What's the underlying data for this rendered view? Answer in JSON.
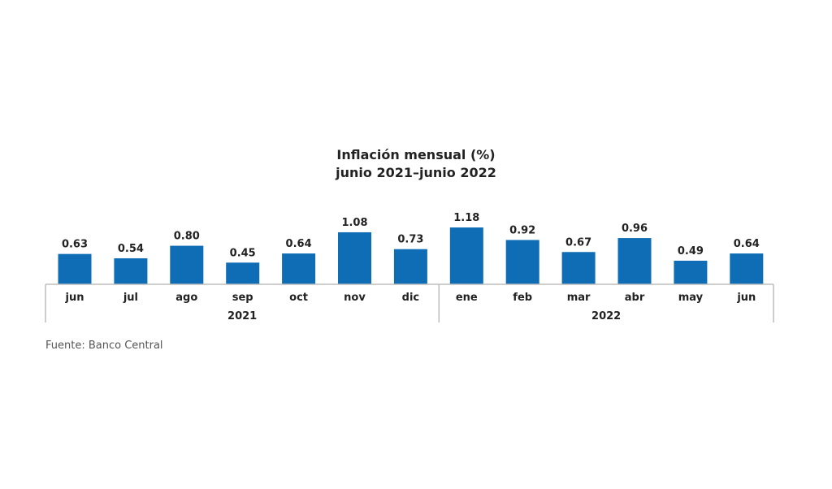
{
  "chart_data": {
    "type": "bar",
    "title": "Inflación mensual (%)",
    "subtitle": "junio 2021–junio 2022",
    "categories": [
      "jun",
      "jul",
      "ago",
      "sep",
      "oct",
      "nov",
      "dic",
      "ene",
      "feb",
      "mar",
      "abr",
      "may",
      "jun"
    ],
    "groups": [
      {
        "label": "2021",
        "count": 7
      },
      {
        "label": "2022",
        "count": 6
      }
    ],
    "values": [
      0.63,
      0.54,
      0.8,
      0.45,
      0.64,
      1.08,
      0.73,
      1.18,
      0.92,
      0.67,
      0.96,
      0.49,
      0.64
    ],
    "value_labels": [
      "0.63",
      "0.54",
      "0.80",
      "0.45",
      "0.64",
      "1.08",
      "0.73",
      "1.18",
      "0.92",
      "0.67",
      "0.96",
      "0.49",
      "0.64"
    ],
    "ylim": [
      0,
      1.2
    ],
    "grid": false,
    "bar_color": "#0f6db5",
    "source": "Fuente: Banco Central"
  }
}
